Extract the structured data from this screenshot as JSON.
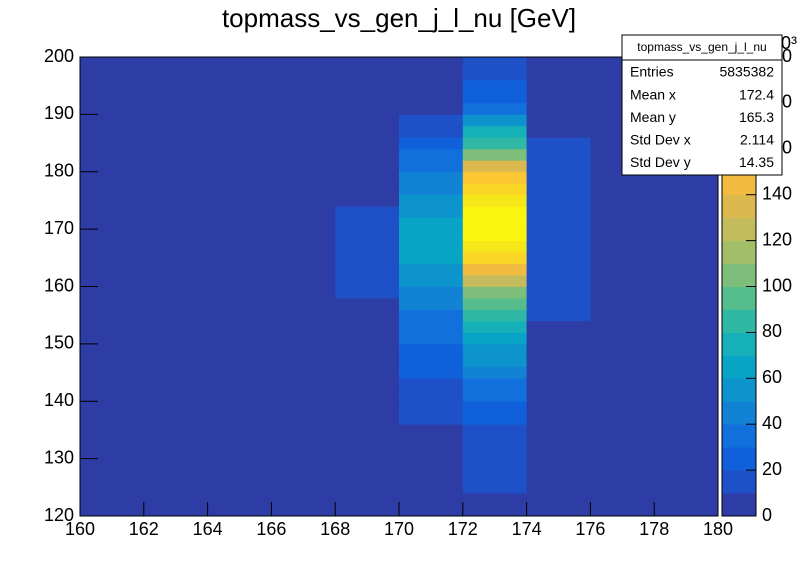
{
  "chart_data": {
    "type": "heatmap",
    "title": "topmass_vs_gen_j_l_nu [GeV]",
    "xbins": [
      160,
      162,
      164,
      166,
      168,
      170,
      172,
      174,
      176,
      178,
      180
    ],
    "ybins": [
      120,
      122,
      124,
      126,
      128,
      130,
      132,
      134,
      136,
      138,
      140,
      142,
      144,
      146,
      148,
      150,
      152,
      154,
      156,
      158,
      160,
      162,
      164,
      166,
      168,
      170,
      172,
      174,
      176,
      178,
      180,
      182,
      184,
      186,
      188,
      190,
      192,
      194,
      196,
      198,
      200
    ],
    "z": [
      [
        0,
        0,
        0,
        0,
        0,
        0,
        0,
        0,
        0,
        0
      ],
      [
        0,
        0,
        0,
        0,
        0,
        0,
        0,
        0,
        0,
        0
      ],
      [
        0,
        0,
        0,
        0,
        0,
        0,
        14,
        0,
        0,
        0
      ],
      [
        0,
        0,
        0,
        0,
        0,
        0,
        14,
        0,
        0,
        0
      ],
      [
        0,
        0,
        0,
        0,
        0,
        0,
        16,
        0,
        0,
        0
      ],
      [
        0,
        0,
        0,
        0,
        0,
        0,
        16,
        0,
        0,
        0
      ],
      [
        0,
        0,
        0,
        0,
        0,
        0,
        18,
        0,
        0,
        0
      ],
      [
        0,
        0,
        0,
        0,
        0,
        0,
        18,
        0,
        0,
        0
      ],
      [
        0,
        0,
        0,
        0,
        0,
        18,
        26,
        0,
        0,
        0
      ],
      [
        0,
        0,
        0,
        0,
        0,
        18,
        28,
        0,
        0,
        0
      ],
      [
        0,
        0,
        0,
        0,
        0,
        18,
        36,
        0,
        0,
        0
      ],
      [
        0,
        0,
        0,
        0,
        0,
        18,
        38,
        0,
        0,
        0
      ],
      [
        0,
        0,
        0,
        0,
        0,
        22,
        46,
        0,
        0,
        0
      ],
      [
        0,
        0,
        0,
        0,
        0,
        22,
        52,
        0,
        0,
        0
      ],
      [
        0,
        0,
        0,
        0,
        0,
        28,
        58,
        0,
        0,
        0
      ],
      [
        0,
        0,
        0,
        0,
        0,
        30,
        66,
        0,
        0,
        0
      ],
      [
        0,
        0,
        0,
        0,
        0,
        34,
        74,
        0,
        0,
        0
      ],
      [
        0,
        0,
        0,
        0,
        0,
        36,
        82,
        14,
        0,
        0
      ],
      [
        0,
        0,
        0,
        0,
        0,
        42,
        92,
        14,
        0,
        0
      ],
      [
        0,
        0,
        0,
        0,
        12,
        46,
        108,
        14,
        0,
        0
      ],
      [
        0,
        0,
        0,
        0,
        12,
        52,
        126,
        16,
        0,
        0
      ],
      [
        0,
        0,
        0,
        0,
        12,
        56,
        146,
        16,
        0,
        0
      ],
      [
        0,
        0,
        0,
        0,
        12,
        62,
        162,
        16,
        0,
        0
      ],
      [
        0,
        0,
        0,
        0,
        12,
        66,
        176,
        18,
        0,
        0
      ],
      [
        0,
        0,
        0,
        0,
        12,
        66,
        186,
        18,
        0,
        0
      ],
      [
        0,
        0,
        0,
        0,
        12,
        64,
        188,
        18,
        0,
        0
      ],
      [
        0,
        0,
        0,
        0,
        12,
        58,
        184,
        18,
        0,
        0
      ],
      [
        0,
        0,
        0,
        0,
        0,
        54,
        176,
        18,
        0,
        0
      ],
      [
        0,
        0,
        0,
        0,
        0,
        44,
        164,
        18,
        0,
        0
      ],
      [
        0,
        0,
        0,
        0,
        0,
        40,
        150,
        18,
        0,
        0
      ],
      [
        0,
        0,
        0,
        0,
        0,
        32,
        132,
        18,
        0,
        0
      ],
      [
        0,
        0,
        0,
        0,
        0,
        30,
        108,
        18,
        0,
        0
      ],
      [
        0,
        0,
        0,
        0,
        0,
        24,
        88,
        18,
        0,
        0
      ],
      [
        0,
        0,
        0,
        0,
        0,
        18,
        70,
        0,
        0,
        0
      ],
      [
        0,
        0,
        0,
        0,
        0,
        18,
        52,
        0,
        0,
        0
      ],
      [
        0,
        0,
        0,
        0,
        0,
        0,
        38,
        0,
        0,
        0
      ],
      [
        0,
        0,
        0,
        0,
        0,
        0,
        28,
        0,
        0,
        0
      ],
      [
        0,
        0,
        0,
        0,
        0,
        0,
        22,
        0,
        0,
        0
      ],
      [
        0,
        0,
        0,
        0,
        0,
        0,
        18,
        0,
        0,
        0
      ],
      [
        0,
        0,
        0,
        0,
        0,
        0,
        18,
        0,
        0,
        0
      ]
    ],
    "xlim": [
      160,
      180
    ],
    "xticks": [
      160,
      162,
      164,
      166,
      168,
      170,
      172,
      174,
      176,
      178,
      180
    ],
    "ylim": [
      120,
      200
    ],
    "yticks": [
      120,
      130,
      140,
      150,
      160,
      170,
      180,
      190,
      200
    ],
    "zlim": [
      0,
      200
    ],
    "zticks": [
      0,
      20,
      40,
      60,
      80,
      100,
      120,
      140,
      160,
      180,
      200
    ],
    "z_multiplier": "×10³",
    "palette": [
      "#2e3ca6",
      "#1e50c8",
      "#1060dc",
      "#1170dc",
      "#1282d4",
      "#0e94cc",
      "#08a4c6",
      "#16b0b8",
      "#2fb9a4",
      "#55be8c",
      "#7dbf7a",
      "#a3be68",
      "#c4bc5c",
      "#dcb94e",
      "#f0bb3e",
      "#fcc733",
      "#fad726",
      "#f6e71a",
      "#f9f50f",
      "#fafb0e"
    ],
    "stats": {
      "title": "topmass_vs_gen_j_l_nu",
      "rows": [
        [
          "Entries",
          "5835382"
        ],
        [
          "Mean x",
          "172.4"
        ],
        [
          "Mean y",
          "165.3"
        ],
        [
          "Std Dev x",
          "2.114"
        ],
        [
          "Std Dev y",
          "14.35"
        ]
      ]
    }
  }
}
